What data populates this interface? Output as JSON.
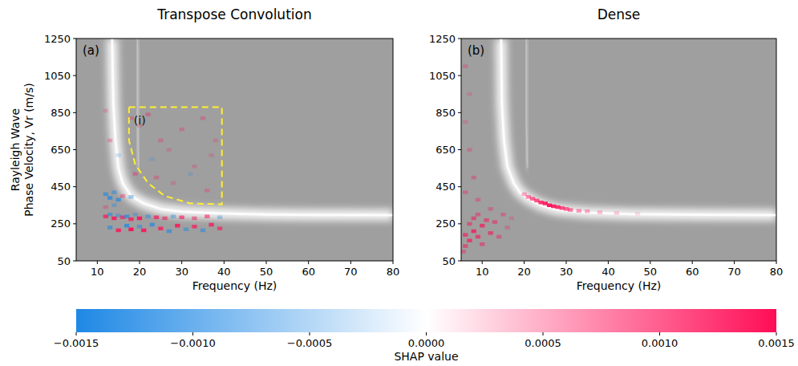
{
  "chart_data": [
    {
      "type": "heatmap",
      "title": "Transpose Convolution",
      "panel": "(a)",
      "xlabel": "Frequency (Hz)",
      "ylabel": [
        "Rayleigh Wave",
        "Phase Velocity, Vr (m/s)"
      ],
      "xlim": [
        5,
        80
      ],
      "ylim": [
        50,
        1250
      ],
      "xticks": [
        10,
        20,
        30,
        40,
        50,
        60,
        70,
        80
      ],
      "yticks": [
        50,
        250,
        450,
        650,
        850,
        1050,
        1250
      ],
      "series": [
        {
          "type": "line",
          "color": "#ffffff",
          "x": [
            13.5,
            13.8,
            14.3,
            15,
            16,
            18,
            21,
            25,
            30,
            40,
            50,
            60,
            80
          ],
          "values": [
            1250,
            900,
            700,
            550,
            470,
            400,
            360,
            330,
            315,
            305,
            300,
            298,
            297
          ]
        },
        {
          "type": "line",
          "color": "#d6d6d6",
          "x": [
            19.5,
            19.5,
            19.8
          ],
          "values": [
            1250,
            800,
            550
          ]
        }
      ],
      "region": {
        "label": "(i)",
        "color": "#ffee33",
        "x": [
          17.5,
          39.5,
          39.5,
          32,
          26,
          22,
          19,
          17.5,
          17.5
        ],
        "y": [
          880,
          880,
          355,
          360,
          400,
          470,
          570,
          700,
          880
        ]
      },
      "cells": [
        [
          12,
          290,
          0.001
        ],
        [
          13,
          300,
          -0.0008
        ],
        [
          14,
          280,
          0.0012
        ],
        [
          15,
          295,
          -0.0006
        ],
        [
          16,
          285,
          0.0009
        ],
        [
          17,
          290,
          -0.001
        ],
        [
          18,
          275,
          0.0011
        ],
        [
          19,
          300,
          -0.0005
        ],
        [
          20,
          280,
          0.0013
        ],
        [
          22,
          290,
          -0.0007
        ],
        [
          24,
          285,
          0.001
        ],
        [
          26,
          280,
          0.0008
        ],
        [
          28,
          290,
          -0.0006
        ],
        [
          30,
          285,
          0.0009
        ],
        [
          33,
          280,
          0.0007
        ],
        [
          36,
          290,
          0.0008
        ],
        [
          39,
          285,
          -0.0005
        ],
        [
          13,
          230,
          -0.0009
        ],
        [
          15,
          215,
          0.0012
        ],
        [
          17,
          240,
          -0.0011
        ],
        [
          18,
          220,
          0.0014
        ],
        [
          20,
          235,
          -0.0008
        ],
        [
          21,
          215,
          0.0013
        ],
        [
          23,
          245,
          -0.001
        ],
        [
          25,
          225,
          0.0011
        ],
        [
          27,
          210,
          -0.0009
        ],
        [
          29,
          240,
          0.0012
        ],
        [
          31,
          220,
          -0.0007
        ],
        [
          33,
          235,
          0.001
        ],
        [
          35,
          215,
          -0.0008
        ],
        [
          37,
          245,
          0.0011
        ],
        [
          39,
          225,
          0.0009
        ],
        [
          12,
          410,
          -0.0009
        ],
        [
          13,
          390,
          -0.0011
        ],
        [
          14,
          420,
          -0.0007
        ],
        [
          15,
          380,
          -0.001
        ],
        [
          16,
          400,
          0.0005
        ],
        [
          18,
          395,
          -0.0006
        ],
        [
          12,
          340,
          0.0004
        ],
        [
          14,
          350,
          -0.0005
        ],
        [
          18,
          820,
          0.0004
        ],
        [
          20,
          780,
          0.0003
        ],
        [
          22,
          840,
          0.0005
        ],
        [
          25,
          700,
          0.0004
        ],
        [
          27,
          650,
          0.0003
        ],
        [
          30,
          760,
          0.0004
        ],
        [
          33,
          560,
          0.0003
        ],
        [
          35,
          820,
          0.0004
        ],
        [
          37,
          620,
          0.0003
        ],
        [
          24,
          500,
          0.0004
        ],
        [
          28,
          470,
          0.0003
        ],
        [
          32,
          520,
          -0.0003
        ],
        [
          36,
          430,
          0.0004
        ],
        [
          38,
          700,
          0.0003
        ],
        [
          13,
          700,
          0.0004
        ],
        [
          12,
          860,
          0.0003
        ],
        [
          15,
          620,
          -0.0003
        ],
        [
          19,
          520,
          0.0005
        ],
        [
          23,
          600,
          -0.0003
        ]
      ]
    },
    {
      "type": "heatmap",
      "title": "Dense",
      "panel": "(b)",
      "xlabel": "Frequency (Hz)",
      "xlim": [
        5,
        80
      ],
      "ylim": [
        50,
        1250
      ],
      "xticks": [
        10,
        20,
        30,
        40,
        50,
        60,
        70,
        80
      ],
      "yticks": [
        50,
        250,
        450,
        650,
        850,
        1050,
        1250
      ],
      "series": [
        {
          "type": "line",
          "color": "#ffffff",
          "x": [
            14.5,
            14.7,
            15.2,
            16,
            17.5,
            19,
            21,
            24,
            28,
            35,
            45,
            60,
            80
          ],
          "values": [
            1250,
            900,
            700,
            560,
            470,
            420,
            385,
            350,
            325,
            310,
            302,
            299,
            297
          ]
        },
        {
          "type": "line",
          "color": "#d6d6d6",
          "x": [
            20.5,
            20.5,
            20.8
          ],
          "values": [
            1250,
            800,
            550
          ]
        }
      ],
      "cells": [
        [
          20,
          410,
          0.0005
        ],
        [
          21,
          395,
          0.0007
        ],
        [
          22,
          385,
          0.0009
        ],
        [
          23,
          375,
          0.001
        ],
        [
          24,
          365,
          0.0012
        ],
        [
          25,
          360,
          0.0013
        ],
        [
          26,
          350,
          0.0014
        ],
        [
          27,
          345,
          0.0013
        ],
        [
          28,
          340,
          0.0012
        ],
        [
          29,
          335,
          0.001
        ],
        [
          30,
          330,
          0.0009
        ],
        [
          31,
          325,
          0.0008
        ],
        [
          33,
          320,
          0.0006
        ],
        [
          35,
          318,
          0.0005
        ],
        [
          38,
          312,
          0.0004
        ],
        [
          42,
          308,
          0.0003
        ],
        [
          47,
          305,
          0.0002
        ],
        [
          6,
          130,
          0.0008
        ],
        [
          6,
          190,
          0.0009
        ],
        [
          7,
          160,
          0.001
        ],
        [
          7,
          250,
          0.0007
        ],
        [
          8,
          210,
          0.0011
        ],
        [
          8,
          280,
          0.0008
        ],
        [
          9,
          180,
          0.0009
        ],
        [
          9,
          300,
          0.0006
        ],
        [
          10,
          240,
          0.001
        ],
        [
          10,
          140,
          0.0007
        ],
        [
          11,
          270,
          0.0008
        ],
        [
          12,
          200,
          0.0009
        ],
        [
          12,
          330,
          0.0005
        ],
        [
          13,
          260,
          0.0007
        ],
        [
          14,
          180,
          0.0006
        ],
        [
          15,
          300,
          0.0005
        ],
        [
          16,
          230,
          0.0004
        ],
        [
          17,
          280,
          0.0003
        ],
        [
          5.5,
          100,
          0.0006
        ],
        [
          6,
          1100,
          0.0004
        ],
        [
          7,
          950,
          0.0003
        ],
        [
          6,
          800,
          0.0003
        ],
        [
          7,
          650,
          0.0004
        ],
        [
          8,
          500,
          0.0005
        ],
        [
          6,
          420,
          0.0005
        ],
        [
          9,
          380,
          0.0005
        ]
      ]
    }
  ],
  "colorbar": {
    "label": "SHAP value",
    "range": [
      -0.0015,
      0.0015
    ],
    "ticks": [
      {
        "value": -0.0015,
        "label": "−0.0015"
      },
      {
        "value": -0.001,
        "label": "−0.0010"
      },
      {
        "value": -0.0005,
        "label": "−0.0005"
      },
      {
        "value": 0,
        "label": "0.0000"
      },
      {
        "value": 0.0005,
        "label": "0.0005"
      },
      {
        "value": 0.001,
        "label": "0.0010"
      },
      {
        "value": 0.0015,
        "label": "0.0015"
      }
    ],
    "colors": [
      "#1e88e5",
      "#ffffff",
      "#ff0d57"
    ]
  }
}
